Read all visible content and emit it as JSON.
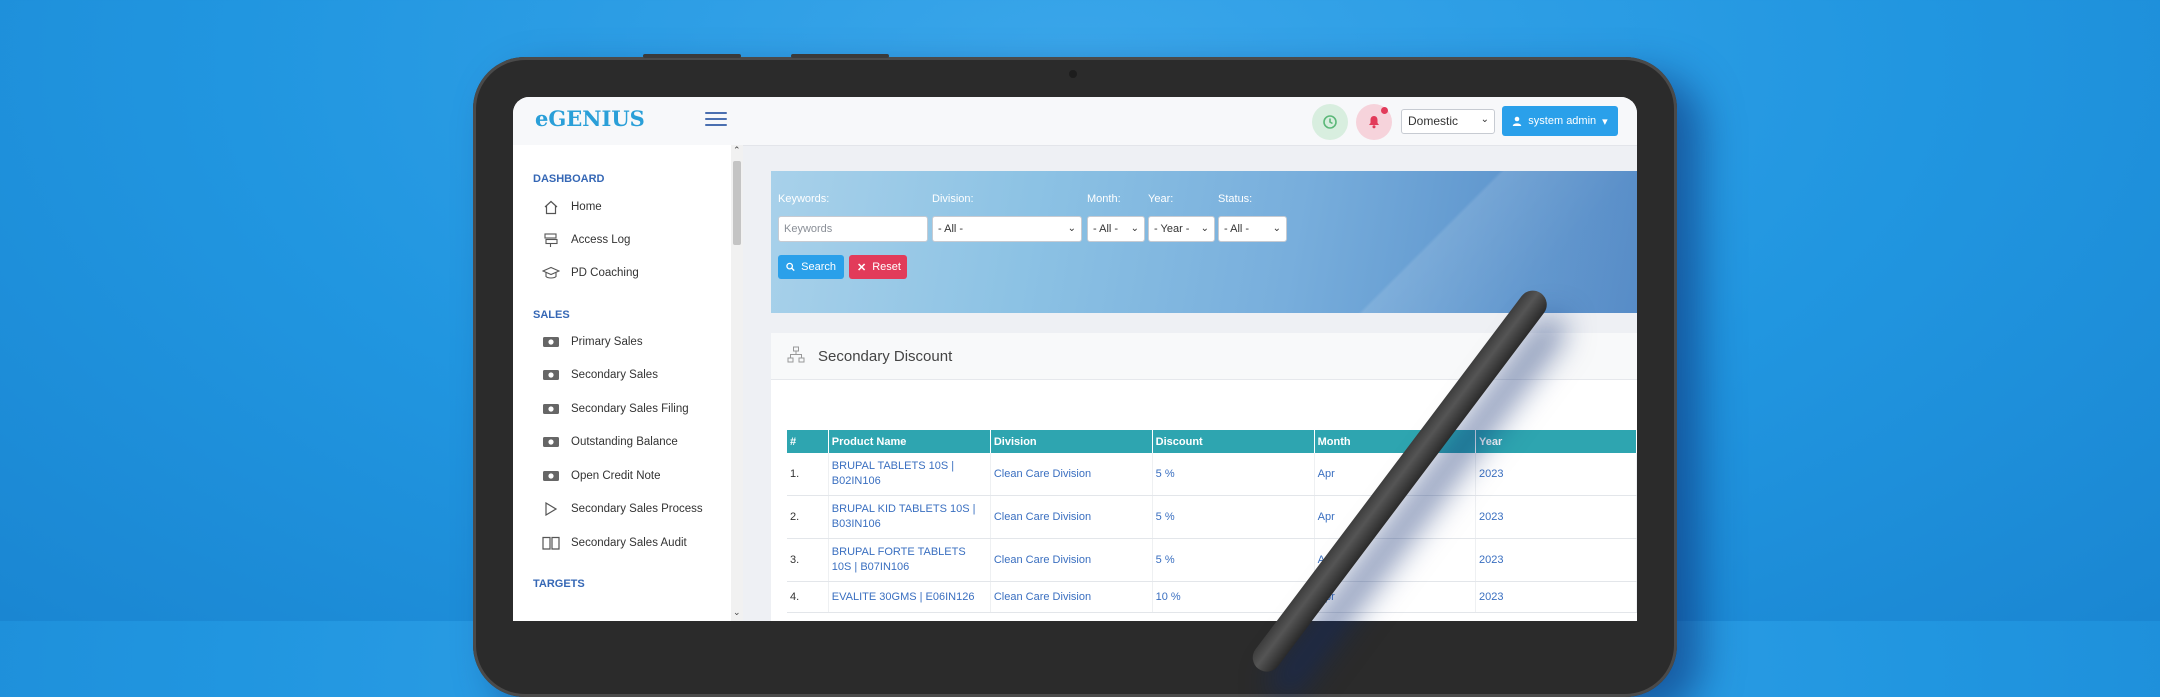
{
  "app": {
    "logo": "eGENIUS"
  },
  "header": {
    "market_select": "Domestic",
    "user_button": "system admin"
  },
  "sidebar": {
    "sections": [
      {
        "title": "DASHBOARD",
        "items": [
          "Home",
          "Access Log",
          "PD Coaching"
        ]
      },
      {
        "title": "SALES",
        "items": [
          "Primary Sales",
          "Secondary Sales",
          "Secondary Sales Filing",
          "Outstanding Balance",
          "Open Credit Note",
          "Secondary Sales Process",
          "Secondary Sales Audit"
        ]
      },
      {
        "title": "TARGETS",
        "items": []
      }
    ]
  },
  "filters": {
    "keywords_label": "Keywords:",
    "keywords_placeholder": "Keywords",
    "division_label": "Division:",
    "division_value": "- All -",
    "month_label": "Month:",
    "month_value": "- All -",
    "year_label": "Year:",
    "year_value": "- Year -",
    "status_label": "Status:",
    "status_value": "- All -",
    "search_button": "Search",
    "reset_button": "Reset"
  },
  "card": {
    "title": "Secondary Discount"
  },
  "table": {
    "columns": [
      "#",
      "Product Name",
      "Division",
      "Discount",
      "Month",
      "Year"
    ],
    "rows": [
      [
        "1.",
        "BRUPAL TABLETS 10S | B02IN106",
        "Clean Care Division",
        "5 %",
        "Apr",
        "2023"
      ],
      [
        "2.",
        "BRUPAL KID TABLETS 10S | B03IN106",
        "Clean Care Division",
        "5 %",
        "Apr",
        "2023"
      ],
      [
        "3.",
        "BRUPAL FORTE TABLETS 10S | B07IN106",
        "Clean Care Division",
        "5 %",
        "Apr",
        "2023"
      ],
      [
        "4.",
        "EVALITE 30GMS | E06IN126",
        "Clean Care Division",
        "10 %",
        "Apr",
        "2023"
      ]
    ]
  },
  "colors": {
    "background": "#2196e0",
    "accent_blue": "#2aa0ea",
    "danger": "#e23b5a",
    "table_header": "#2ea5b0",
    "link": "#3a6fc0"
  }
}
